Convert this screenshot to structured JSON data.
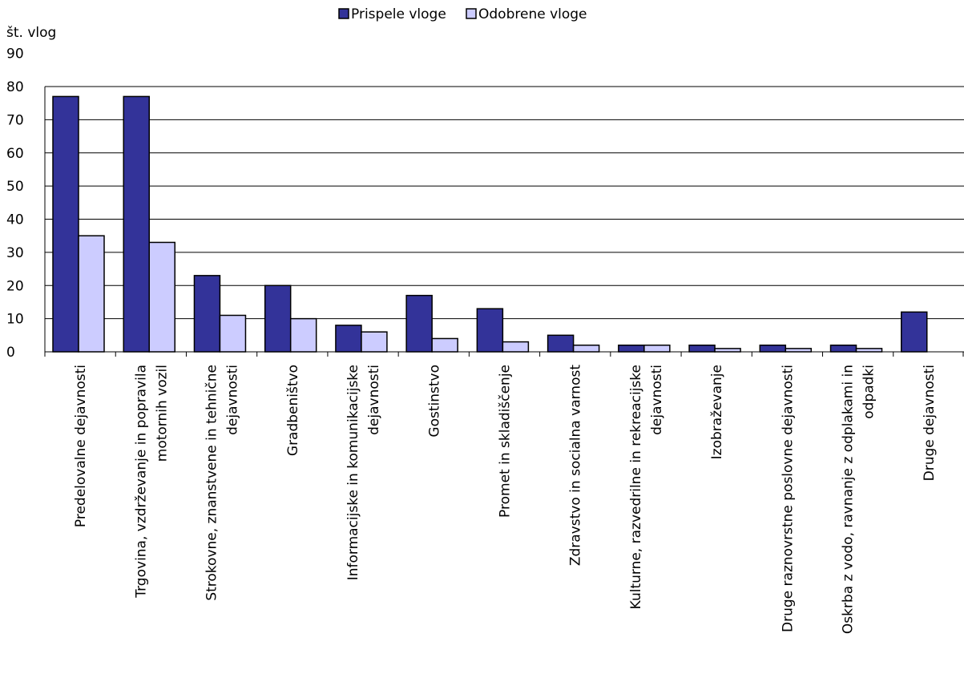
{
  "chart_data": {
    "type": "bar",
    "ylabel": "št. vlog",
    "xlabel": "",
    "ylim": [
      0,
      90
    ],
    "yticks": [
      0,
      10,
      20,
      30,
      40,
      50,
      60,
      70,
      80,
      90
    ],
    "grid": true,
    "legend_position": "top",
    "categories": [
      [
        "Predelovalne dejavnosti"
      ],
      [
        "Trgovina, vzdrževanje in popravila",
        "motornih vozil"
      ],
      [
        "Strokovne, znanstvene in tehnične",
        "dejavnosti"
      ],
      [
        "Gradbeništvo"
      ],
      [
        "Informacijske in komunikacijske",
        "dejavnosti"
      ],
      [
        "Gostinstvo"
      ],
      [
        "Promet in skladiščenje"
      ],
      [
        "Zdravstvo in socialna varnost"
      ],
      [
        "Kulturne, razvedrilne in rekreacijske",
        "dejavnosti"
      ],
      [
        "Izobraževanje"
      ],
      [
        "Druge raznovrstne poslovne dejavnosti"
      ],
      [
        "Oskrba z vodo, ravnanje z odplakami in",
        "odpadki"
      ],
      [
        "Druge dejavnosti"
      ]
    ],
    "series": [
      {
        "name": "Prispele vloge",
        "color": "#333399",
        "values": [
          77,
          77,
          23,
          20,
          8,
          17,
          13,
          5,
          2,
          2,
          2,
          2,
          12
        ]
      },
      {
        "name": "Odobrene vloge",
        "color": "#ccccff",
        "values": [
          35,
          33,
          11,
          10,
          6,
          4,
          3,
          2,
          2,
          1,
          1,
          1,
          0
        ]
      }
    ]
  }
}
